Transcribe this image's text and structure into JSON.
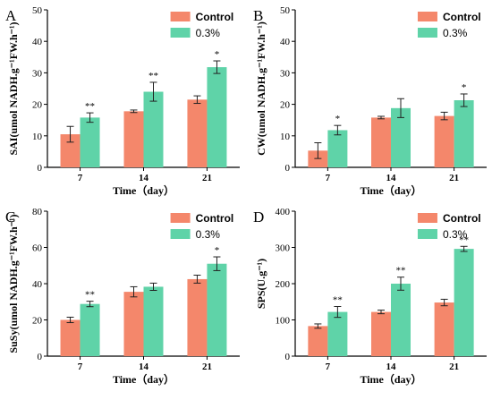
{
  "chart_data": [
    {
      "type": "bar",
      "panel": "A",
      "ylabel": "SAI(umol NADH.g⁻¹FW.h⁻¹)",
      "xlabel": "Time（day）",
      "categories": [
        "7",
        "14",
        "21"
      ],
      "ylim": [
        0,
        50
      ],
      "yticks": [
        0,
        10,
        20,
        30,
        40,
        50
      ],
      "series": [
        {
          "name": "Control",
          "values": [
            10.5,
            17.8,
            21.5
          ],
          "errors": [
            2.5,
            0.4,
            1.2
          ]
        },
        {
          "name": "0.3%",
          "values": [
            15.8,
            24.0,
            31.8
          ],
          "errors": [
            1.5,
            3.0,
            2.0
          ]
        }
      ],
      "significance": [
        "**",
        "**",
        "*"
      ]
    },
    {
      "type": "bar",
      "panel": "B",
      "ylabel": "CW(umol NADH.g⁻¹FW.h⁻¹)",
      "xlabel": "Time（day）",
      "categories": [
        "7",
        "14",
        "21"
      ],
      "ylim": [
        0,
        50
      ],
      "yticks": [
        0,
        10,
        20,
        30,
        40,
        50
      ],
      "series": [
        {
          "name": "Control",
          "values": [
            5.3,
            15.8,
            16.3
          ],
          "errors": [
            2.5,
            0.4,
            1.2
          ]
        },
        {
          "name": "0.3%",
          "values": [
            11.8,
            18.8,
            21.3
          ],
          "errors": [
            1.5,
            3.0,
            2.0
          ]
        }
      ],
      "significance": [
        "*",
        "",
        "*"
      ]
    },
    {
      "type": "bar",
      "panel": "C",
      "ylabel": "SuSy(umol NADH.g⁻¹FW.h⁻¹)",
      "xlabel": "Time（day）",
      "categories": [
        "7",
        "14",
        "21"
      ],
      "ylim": [
        0,
        80
      ],
      "yticks": [
        0,
        20,
        40,
        60,
        80
      ],
      "series": [
        {
          "name": "Control",
          "values": [
            20.0,
            35.5,
            42.5
          ],
          "errors": [
            1.5,
            2.8,
            2.2
          ]
        },
        {
          "name": "0.3%",
          "values": [
            28.8,
            38.3,
            51.0
          ],
          "errors": [
            1.5,
            2.0,
            3.8
          ]
        }
      ],
      "significance": [
        "**",
        "",
        "*"
      ]
    },
    {
      "type": "bar",
      "panel": "D",
      "ylabel": "SPS(U.g⁻¹)",
      "xlabel": "Time（day）",
      "categories": [
        "7",
        "14",
        "21"
      ],
      "ylim": [
        0,
        400
      ],
      "yticks": [
        0,
        100,
        200,
        300,
        400
      ],
      "series": [
        {
          "name": "Control",
          "values": [
            83,
            122,
            148
          ],
          "errors": [
            6,
            5,
            9
          ]
        },
        {
          "name": "0.3%",
          "values": [
            122,
            200,
            296
          ],
          "errors": [
            15,
            18,
            7
          ]
        }
      ],
      "significance": [
        "**",
        "**",
        "**"
      ]
    }
  ],
  "colors": {
    "control": "#f4876b",
    "treatment": "#5fd3a8"
  }
}
